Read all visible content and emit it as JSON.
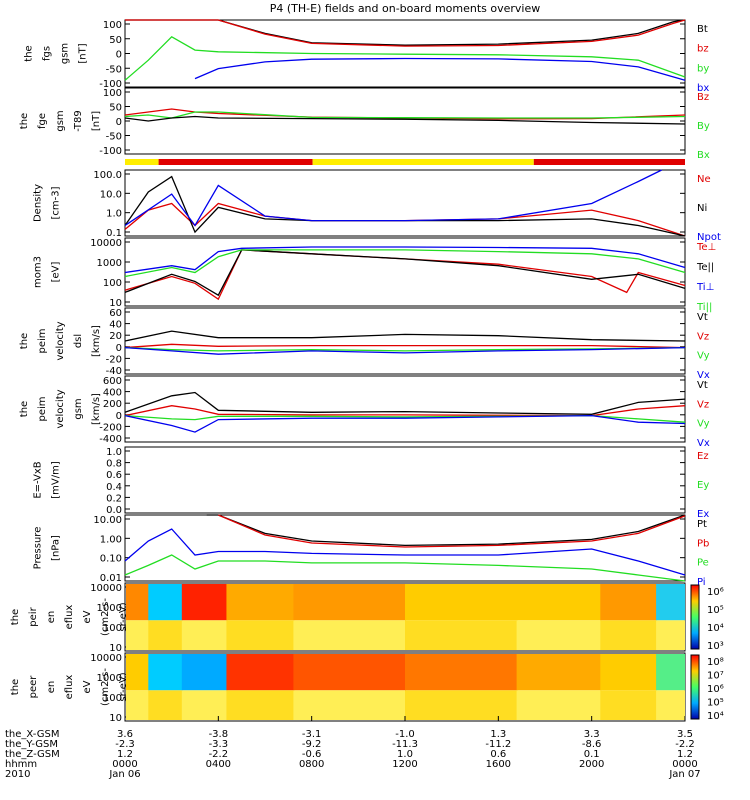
{
  "title": "P4 (TH-E) fields and on-board moments overview",
  "colors": {
    "black": "#000000",
    "red": "#e00000",
    "green": "#22dd22",
    "blue": "#0000ee",
    "yellow": "#ffee00"
  },
  "panels": [
    {
      "ylabel": [
        "the",
        "fgs",
        "gsm",
        "[nT]"
      ],
      "ticks": [
        "100",
        "50",
        "0",
        "-50",
        "-100"
      ],
      "legend": [
        {
          "label": "Bt",
          "color": "black"
        },
        {
          "label": "bz",
          "color": "red"
        },
        {
          "label": "by",
          "color": "green"
        },
        {
          "label": "bx",
          "color": "blue"
        }
      ]
    },
    {
      "ylabel": [
        "the",
        "fge",
        "gsm",
        "-T89",
        "[nT]"
      ],
      "ticks": [
        "100",
        "50",
        "0",
        "-50",
        "-100"
      ],
      "legend": [
        {
          "label": "Bz",
          "color": "red"
        },
        {
          "label": "By",
          "color": "green"
        },
        {
          "label": "Bx",
          "color": "green"
        }
      ]
    },
    {
      "ylabel": [
        "Density",
        "[cm-3]"
      ],
      "ticks": [
        "100.0",
        "10.0",
        "1.0",
        "0.1"
      ],
      "legend": [
        {
          "label": "Ne",
          "color": "red"
        },
        {
          "label": "Ni",
          "color": "black"
        },
        {
          "label": "Npot",
          "color": "blue"
        }
      ]
    },
    {
      "ylabel": [
        "mom3",
        "[eV]"
      ],
      "ticks": [
        "10000",
        "1000",
        "100",
        "10"
      ],
      "legend": [
        {
          "label": "Te⊥",
          "color": "red"
        },
        {
          "label": "Te||",
          "color": "black"
        },
        {
          "label": "Ti⊥",
          "color": "blue"
        },
        {
          "label": "Ti||",
          "color": "green"
        }
      ]
    },
    {
      "ylabel": [
        "the",
        "peim",
        "velocity",
        "dsl",
        "[km/s]"
      ],
      "ticks": [
        "60",
        "40",
        "20",
        "0",
        "-20",
        "-40"
      ],
      "legend": [
        {
          "label": "Vt",
          "color": "black"
        },
        {
          "label": "Vz",
          "color": "red"
        },
        {
          "label": "Vy",
          "color": "green"
        },
        {
          "label": "Vx",
          "color": "blue"
        }
      ]
    },
    {
      "ylabel": [
        "the",
        "peim",
        "velocity",
        "gsm",
        "[km/s]"
      ],
      "ticks": [
        "600",
        "400",
        "200",
        "0",
        "-200",
        "-400"
      ],
      "legend": [
        {
          "label": "Vt",
          "color": "black"
        },
        {
          "label": "Vz",
          "color": "red"
        },
        {
          "label": "Vy",
          "color": "green"
        },
        {
          "label": "Vx",
          "color": "blue"
        }
      ]
    },
    {
      "ylabel": [
        "E=-VxB",
        "[mV/m]"
      ],
      "ticks": [
        "1.0",
        "0.8",
        "0.6",
        "0.4",
        "0.2",
        "0.0"
      ],
      "legend": [
        {
          "label": "Ez",
          "color": "red"
        },
        {
          "label": "Ey",
          "color": "green"
        },
        {
          "label": "Ex",
          "color": "blue"
        }
      ]
    },
    {
      "ylabel": [
        "Pressure",
        "[nPa]"
      ],
      "ticks": [
        "10.00",
        "1.00",
        "0.10",
        "0.01"
      ],
      "legend": [
        {
          "label": "Pt",
          "color": "black"
        },
        {
          "label": "Pb",
          "color": "red"
        },
        {
          "label": "Pe",
          "color": "green"
        },
        {
          "label": "Pi",
          "color": "blue"
        }
      ]
    },
    {
      "ylabel": [
        "the",
        "peir",
        "en",
        "eflux",
        "eV",
        "(cm2-s-",
        "sr-eV)"
      ],
      "ticks": [
        "10000",
        "1000",
        "100",
        "10"
      ],
      "colorbar": [
        "10⁶",
        "10⁵",
        "10⁴",
        "10³"
      ]
    },
    {
      "ylabel": [
        "the",
        "peer",
        "en",
        "eflux",
        "eV",
        "(cm2-s-",
        "sr-eV)"
      ],
      "ticks": [
        "10000",
        "1000",
        "100",
        "10"
      ],
      "colorbar": [
        "10⁸",
        "10⁷",
        "10⁶",
        "10⁵",
        "10⁴"
      ]
    }
  ],
  "ephemeris": {
    "labels": [
      "the_X-GSM",
      "the_Y-GSM",
      "the_Z-GSM",
      "hhmm",
      "2010"
    ],
    "columns": [
      [
        "3.6",
        "-2.3",
        "1.2",
        "0000",
        "Jan 06"
      ],
      [
        "-3.8",
        "-3.3",
        "-2.2",
        "0400",
        ""
      ],
      [
        "-3.1",
        "-9.2",
        "-0.6",
        "0800",
        ""
      ],
      [
        "-1.0",
        "-11.3",
        "1.0",
        "1200",
        ""
      ],
      [
        "1.3",
        "-11.2",
        "0.6",
        "1600",
        ""
      ],
      [
        "3.3",
        "-8.6",
        "0.1",
        "2000",
        ""
      ],
      [
        "3.5",
        "-2.2",
        "1.2",
        "0000",
        "Jan 07"
      ]
    ]
  },
  "chart_data": {
    "type": "line",
    "title": "P4 (TH-E) fields and on-board moments overview",
    "x_ticks": [
      "0000",
      "0400",
      "0800",
      "1200",
      "1600",
      "2000",
      "0000"
    ],
    "x_unit": "hours since 2010 Jan 06 00:00",
    "x_range": [
      0,
      24
    ],
    "panels": [
      {
        "name": "fgs gsm",
        "ylim": [
          -100,
          100
        ],
        "series": [
          {
            "name": "Bt",
            "x": [
              0,
              3,
              4,
              6,
              8,
              12,
              16,
              20,
              22,
              23.5,
              24
            ],
            "y": [
              100,
              100,
              100,
              60,
              32,
              25,
              28,
              40,
              60,
              95,
              100
            ]
          },
          {
            "name": "bz",
            "x": [
              0,
              3,
              4,
              6,
              8,
              12,
              16,
              20,
              22,
              23.5,
              24
            ],
            "y": [
              100,
              100,
              100,
              58,
              30,
              22,
              24,
              36,
              55,
              90,
              100
            ]
          },
          {
            "name": "by",
            "x": [
              0,
              1,
              2,
              3,
              4,
              8,
              12,
              16,
              20,
              22,
              24
            ],
            "y": [
              -80,
              -20,
              50,
              10,
              5,
              0,
              -2,
              -4,
              -10,
              -20,
              -70
            ]
          },
          {
            "name": "bx",
            "x": [
              3,
              4,
              6,
              8,
              12,
              16,
              20,
              22,
              24
            ],
            "y": [
              -75,
              -45,
              -25,
              -17,
              -15,
              -16,
              -24,
              -40,
              -80
            ]
          }
        ]
      },
      {
        "name": "fge gsm -T89",
        "ylim": [
          -120,
          100
        ],
        "series": [
          {
            "name": "Bz",
            "x": [
              0,
              1,
              2,
              3,
              4,
              8,
              12,
              16,
              20,
              24
            ],
            "y": [
              10,
              20,
              30,
              20,
              15,
              3,
              0,
              -3,
              -2,
              10
            ]
          },
          {
            "name": "By",
            "x": [
              0,
              1,
              2,
              3,
              4,
              8,
              12,
              16,
              20,
              24
            ],
            "y": [
              5,
              10,
              0,
              20,
              20,
              2,
              1,
              0,
              0,
              5
            ]
          },
          {
            "name": "Bx",
            "x": [
              0,
              1,
              2,
              3,
              4,
              8,
              12,
              16,
              20,
              24
            ],
            "y": [
              0,
              -10,
              0,
              5,
              0,
              -2,
              -4,
              -8,
              -15,
              -20
            ]
          }
        ]
      },
      {
        "name": "Density",
        "ylim": [
          0.1,
          100
        ],
        "scale": "log",
        "series": [
          {
            "name": "Ne",
            "x": [
              0,
              1,
              2,
              3,
              4,
              6,
              8,
              12,
              16,
              20,
              22,
              24
            ],
            "y": [
              0.2,
              1.5,
              3,
              0.3,
              3,
              0.8,
              0.5,
              0.5,
              0.6,
              1.5,
              0.5,
              0.1
            ]
          },
          {
            "name": "Ni",
            "x": [
              0,
              1,
              2,
              3,
              4,
              6,
              8,
              12,
              16,
              20,
              22,
              24
            ],
            "y": [
              0.3,
              10,
              50,
              0.15,
              2,
              0.6,
              0.5,
              0.5,
              0.5,
              0.6,
              0.3,
              0.1
            ]
          },
          {
            "name": "Npot",
            "x": [
              0,
              2,
              3,
              4,
              6,
              8,
              12,
              16,
              20,
              22,
              23
            ],
            "y": [
              0.3,
              8,
              0.3,
              20,
              0.8,
              0.5,
              0.5,
              0.6,
              3,
              30,
              100
            ]
          }
        ]
      },
      {
        "name": "mom3",
        "ylim": [
          10,
          10000
        ],
        "scale": "log",
        "series": [
          {
            "name": "Te⊥",
            "x": [
              0,
              2,
              3,
              4,
              5,
              8,
              12,
              16,
              20,
              21.5,
              22,
              24
            ],
            "y": [
              50,
              200,
              100,
              20,
              3000,
              2000,
              1200,
              700,
              200,
              40,
              300,
              80
            ]
          },
          {
            "name": "Te||",
            "x": [
              0,
              2,
              3,
              4,
              5,
              8,
              12,
              16,
              20,
              22,
              24
            ],
            "y": [
              40,
              250,
              120,
              30,
              3000,
              2000,
              1200,
              600,
              150,
              250,
              60
            ]
          },
          {
            "name": "Ti⊥",
            "x": [
              0,
              2,
              3,
              4,
              5,
              8,
              12,
              16,
              20,
              22,
              24
            ],
            "y": [
              300,
              600,
              400,
              2500,
              3500,
              4000,
              4000,
              3800,
              3500,
              2000,
              500
            ]
          },
          {
            "name": "Ti||",
            "x": [
              0,
              2,
              3,
              4,
              5,
              8,
              12,
              16,
              20,
              22,
              24
            ],
            "y": [
              200,
              500,
              300,
              1500,
              3000,
              3000,
              3000,
              2500,
              2000,
              1200,
              300
            ]
          }
        ]
      },
      {
        "name": "peim velocity dsl",
        "ylim": [
          -40,
          60
        ],
        "series": [
          {
            "name": "Vt",
            "x": [
              0,
              2,
              4,
              8,
              12,
              16,
              20,
              24
            ],
            "y": [
              10,
              25,
              15,
              15,
              20,
              18,
              12,
              10
            ]
          },
          {
            "name": "Vz",
            "x": [
              0,
              2,
              4,
              8,
              12,
              16,
              20,
              24
            ],
            "y": [
              0,
              5,
              2,
              3,
              3,
              3,
              3,
              0
            ]
          },
          {
            "name": "Vy",
            "x": [
              0,
              2,
              4,
              8,
              12,
              16,
              20,
              24
            ],
            "y": [
              0,
              -3,
              -5,
              -3,
              -5,
              -3,
              -2,
              0
            ]
          },
          {
            "name": "Vx",
            "x": [
              0,
              2,
              4,
              8,
              12,
              16,
              20,
              24
            ],
            "y": [
              0,
              -5,
              -10,
              -5,
              -8,
              -5,
              -3,
              0
            ]
          }
        ]
      },
      {
        "name": "peim velocity gsm",
        "ylim": [
          -400,
          600
        ],
        "series": [
          {
            "name": "Vt",
            "x": [
              0,
              2,
              3,
              4,
              8,
              12,
              16,
              20,
              22,
              24
            ],
            "y": [
              50,
              300,
              350,
              80,
              50,
              60,
              40,
              20,
              200,
              250
            ]
          },
          {
            "name": "Vz",
            "x": [
              0,
              2,
              3,
              4,
              8,
              12,
              16,
              20,
              22,
              24
            ],
            "y": [
              0,
              150,
              100,
              20,
              10,
              10,
              5,
              0,
              100,
              150
            ]
          },
          {
            "name": "Vy",
            "x": [
              0,
              2,
              3,
              4,
              8,
              12,
              16,
              20,
              22,
              24
            ],
            "y": [
              0,
              -50,
              -60,
              -10,
              -10,
              -20,
              -10,
              0,
              -50,
              -100
            ]
          },
          {
            "name": "Vx",
            "x": [
              0,
              2,
              3,
              4,
              8,
              12,
              16,
              20,
              22,
              24
            ],
            "y": [
              0,
              -150,
              -250,
              -60,
              -40,
              -40,
              -20,
              0,
              -100,
              -120
            ]
          }
        ]
      },
      {
        "name": "E=-VxB",
        "ylim": [
          0,
          1
        ],
        "series": []
      },
      {
        "name": "Pressure",
        "ylim": [
          0.005,
          10
        ],
        "scale": "log",
        "series": [
          {
            "name": "Pt",
            "x": [
              3.5,
              4,
              6,
              8,
              12,
              16,
              20,
              22,
              24
            ],
            "y": [
              10,
              10,
              1.2,
              0.5,
              0.3,
              0.35,
              0.6,
              1.5,
              10
            ]
          },
          {
            "name": "Pb",
            "x": [
              4,
              6,
              8,
              12,
              16,
              20,
              22,
              24
            ],
            "y": [
              10,
              1,
              0.4,
              0.25,
              0.3,
              0.5,
              1.2,
              9
            ]
          },
          {
            "name": "Pe",
            "x": [
              0,
              1,
              2,
              3,
              4,
              6,
              8,
              12,
              16,
              20,
              22,
              24
            ],
            "y": [
              0.01,
              0.03,
              0.1,
              0.02,
              0.05,
              0.05,
              0.04,
              0.04,
              0.03,
              0.02,
              0.01,
              0.005
            ]
          },
          {
            "name": "Pi",
            "x": [
              0,
              1,
              2,
              3,
              4,
              6,
              8,
              12,
              16,
              20,
              22,
              24
            ],
            "y": [
              0.05,
              0.5,
              2,
              0.1,
              0.15,
              0.15,
              0.12,
              0.1,
              0.1,
              0.2,
              0.05,
              0.01
            ]
          }
        ]
      }
    ]
  }
}
